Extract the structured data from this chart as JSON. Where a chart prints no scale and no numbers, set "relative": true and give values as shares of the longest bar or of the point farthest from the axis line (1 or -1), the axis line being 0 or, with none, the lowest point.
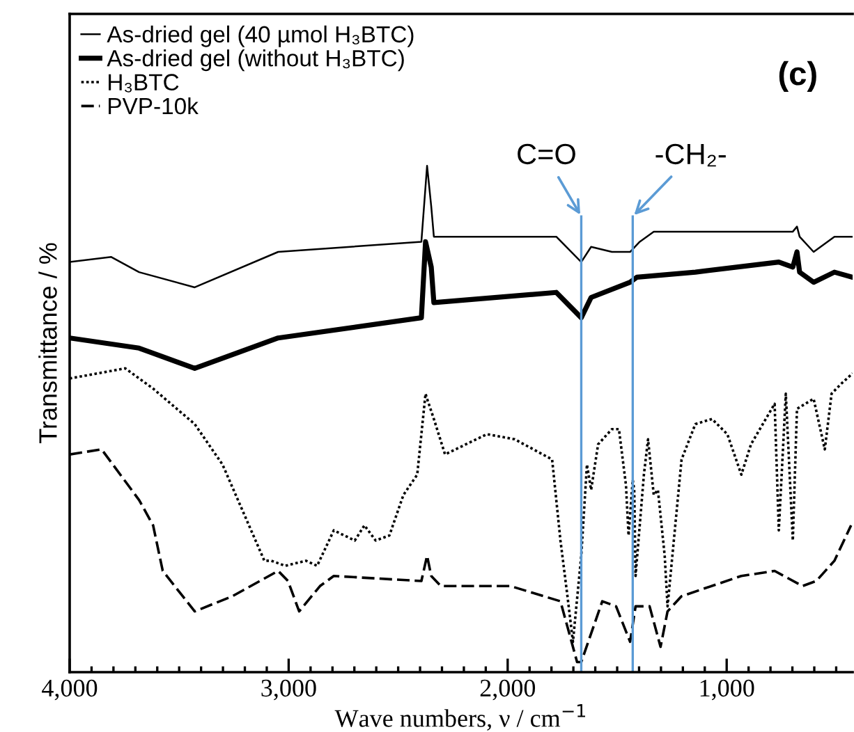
{
  "chart_data": {
    "type": "line",
    "relative": true,
    "xlabel": "Wave numbers, ν / cm$^{−1}$",
    "ylabel": "Transmittance / %",
    "xlim": [
      4000,
      425
    ],
    "xticks": [
      {
        "value": 4000,
        "label": "4,000"
      },
      {
        "value": 3900,
        "label": null
      },
      {
        "value": 3800,
        "label": null
      },
      {
        "value": 3700,
        "label": null
      },
      {
        "value": 3600,
        "label": null
      },
      {
        "value": 3500,
        "label": null
      },
      {
        "value": 3400,
        "label": null
      },
      {
        "value": 3300,
        "label": null
      },
      {
        "value": 3200,
        "label": null
      },
      {
        "value": 3100,
        "label": null
      },
      {
        "value": 3000,
        "label": "3,000"
      },
      {
        "value": 2900,
        "label": null
      },
      {
        "value": 2800,
        "label": null
      },
      {
        "value": 2700,
        "label": null
      },
      {
        "value": 2600,
        "label": null
      },
      {
        "value": 2500,
        "label": null
      },
      {
        "value": 2400,
        "label": null
      },
      {
        "value": 2300,
        "label": null
      },
      {
        "value": 2200,
        "label": null
      },
      {
        "value": 2100,
        "label": null
      },
      {
        "value": 2000,
        "label": "2,000"
      },
      {
        "value": 1900,
        "label": null
      },
      {
        "value": 1800,
        "label": null
      },
      {
        "value": 1700,
        "label": null
      },
      {
        "value": 1600,
        "label": null
      },
      {
        "value": 1500,
        "label": null
      },
      {
        "value": 1400,
        "label": null
      },
      {
        "value": 1300,
        "label": null
      },
      {
        "value": 1200,
        "label": null
      },
      {
        "value": 1100,
        "label": null
      },
      {
        "value": 1000,
        "label": "1,000"
      },
      {
        "value": 900,
        "label": null
      },
      {
        "value": 800,
        "label": null
      },
      {
        "value": 700,
        "label": null
      },
      {
        "value": 600,
        "label": null
      },
      {
        "value": 500,
        "label": null
      }
    ],
    "legend": "top left",
    "grid": false,
    "marker": "none",
    "series": [
      {
        "name": "As-dried gel (40 µmol H₃BTC)",
        "color": "#000000",
        "line_style": "solid",
        "x": [
          4000,
          3810,
          3683,
          3429,
          3048,
          2394,
          2368,
          2349,
          2337,
          1778,
          1664,
          1619,
          1524,
          1441,
          1397,
          1333,
          698,
          679,
          667,
          603,
          508,
          425
        ],
        "values": [
          0.81,
          0.82,
          0.79,
          0.76,
          0.83,
          0.85,
          1.0,
          0.92,
          0.86,
          0.86,
          0.81,
          0.84,
          0.83,
          0.83,
          0.85,
          0.87,
          0.87,
          0.88,
          0.86,
          0.83,
          0.86,
          0.86
        ]
      },
      {
        "name": "As-dried gel (without H₃BTC)",
        "color": "#000000",
        "line_style": "solid",
        "x": [
          4000,
          3683,
          3429,
          3048,
          2394,
          2375,
          2349,
          2337,
          1778,
          1664,
          1619,
          1441,
          1410,
          1143,
          762,
          698,
          679,
          667,
          603,
          508,
          425
        ],
        "values": [
          0.66,
          0.64,
          0.6,
          0.66,
          0.7,
          0.85,
          0.8,
          0.73,
          0.75,
          0.7,
          0.74,
          0.77,
          0.78,
          0.79,
          0.81,
          0.8,
          0.83,
          0.79,
          0.77,
          0.79,
          0.78
        ]
      },
      {
        "name": "H₃BTC",
        "color": "#000000",
        "line_style": "dotted",
        "x": [
          4000,
          3746,
          3619,
          3429,
          3302,
          3111,
          3079,
          3016,
          2921,
          2870,
          2794,
          2698,
          2654,
          2603,
          2540,
          2476,
          2413,
          2375,
          2368,
          2337,
          2286,
          2095,
          1968,
          1797,
          1759,
          1727,
          1702,
          1664,
          1638,
          1619,
          1587,
          1524,
          1492,
          1460,
          1448,
          1429,
          1422,
          1416,
          1378,
          1359,
          1333,
          1314,
          1283,
          1270,
          1206,
          1143,
          1067,
          997,
          933,
          889,
          781,
          762,
          730,
          698,
          679,
          603,
          552,
          521,
          476,
          425
        ],
        "values": [
          0.58,
          0.6,
          0.56,
          0.49,
          0.41,
          0.22,
          0.22,
          0.21,
          0.22,
          0.21,
          0.28,
          0.26,
          0.29,
          0.26,
          0.27,
          0.35,
          0.39,
          0.55,
          0.54,
          0.5,
          0.43,
          0.47,
          0.46,
          0.42,
          0.26,
          0.15,
          0.06,
          0.23,
          0.41,
          0.36,
          0.45,
          0.48,
          0.48,
          0.37,
          0.27,
          0.38,
          0.36,
          0.19,
          0.39,
          0.46,
          0.35,
          0.36,
          0.23,
          0.13,
          0.42,
          0.49,
          0.5,
          0.47,
          0.39,
          0.45,
          0.53,
          0.28,
          0.55,
          0.26,
          0.52,
          0.54,
          0.44,
          0.55,
          0.57,
          0.59
        ]
      },
      {
        "name": "PVP-10k",
        "color": "#000000",
        "line_style": "dashed",
        "x": [
          4000,
          3854,
          3683,
          3619,
          3575,
          3429,
          3257,
          3048,
          3003,
          2952,
          2857,
          2794,
          2394,
          2368,
          2349,
          2305,
          1987,
          1759,
          1683,
          1664,
          1568,
          1505,
          1441,
          1416,
          1352,
          1302,
          1270,
          1206,
          933,
          781,
          654,
          591,
          508,
          432
        ],
        "values": [
          0.43,
          0.44,
          0.34,
          0.29,
          0.2,
          0.12,
          0.15,
          0.2,
          0.18,
          0.12,
          0.17,
          0.19,
          0.18,
          0.23,
          0.19,
          0.17,
          0.17,
          0.14,
          0.02,
          0.02,
          0.14,
          0.13,
          0.06,
          0.13,
          0.13,
          0.05,
          0.12,
          0.15,
          0.19,
          0.2,
          0.17,
          0.18,
          0.22,
          0.29
        ]
      }
    ],
    "ref_lines": [
      {
        "axis": "x",
        "value": 1664,
        "color": "#5b9bd5"
      },
      {
        "axis": "x",
        "value": 1429,
        "color": "#5b9bd5"
      }
    ],
    "annotations": [
      "(c)",
      {
        "text": "C=O",
        "x": 1664,
        "y": 0.9
      },
      {
        "text": "-CH₂-",
        "x": 1429,
        "y": 0.9
      }
    ]
  }
}
